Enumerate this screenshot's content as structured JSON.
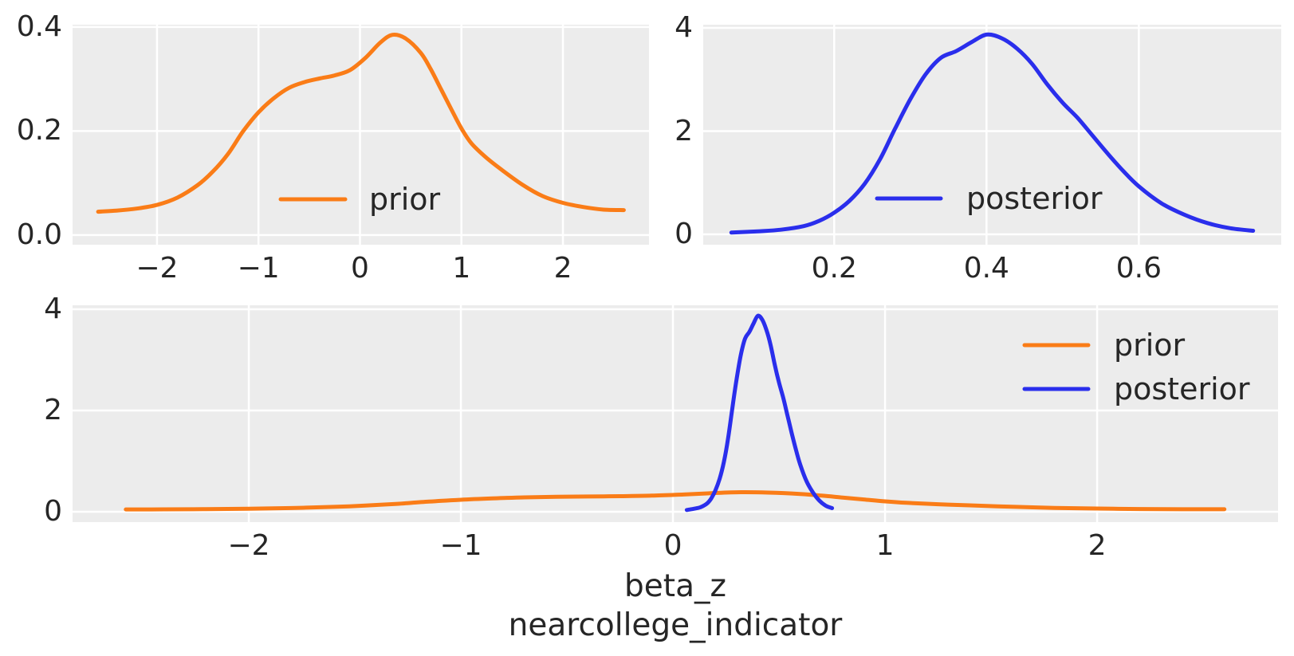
{
  "figure": {
    "background": "#ffffff",
    "axes_background": "#ececec",
    "grid_color": "#ffffff",
    "text_color": "#262626",
    "xlabel_lines": [
      "beta_z",
      "nearcollege_indicator"
    ]
  },
  "chart_data": [
    {
      "id": "prior-marginal",
      "type": "line",
      "kind": "kde-density",
      "title": "",
      "xlabel": "",
      "ylabel": "",
      "grid": true,
      "xlim": [
        -2.832,
        2.848
      ],
      "ylim": [
        -0.0185,
        0.4045
      ],
      "xticks": {
        "values": [
          -2,
          -1,
          0,
          1,
          2
        ],
        "labels": [
          "−2",
          "−1",
          "0",
          "1",
          "2"
        ]
      },
      "yticks": {
        "values": [
          0,
          0.2,
          0.4
        ],
        "labels": [
          "0.0",
          "0.2",
          "0.4"
        ]
      },
      "legend": {
        "location": "lower center",
        "entries": [
          {
            "label": "prior",
            "color": "#fa7c17"
          }
        ]
      },
      "series": [
        {
          "name": "prior",
          "color": "#fa7c17",
          "points": [
            [
              -2.58,
              0.045
            ],
            [
              -2.4,
              0.047
            ],
            [
              -2.2,
              0.051
            ],
            [
              -2.0,
              0.058
            ],
            [
              -1.8,
              0.072
            ],
            [
              -1.6,
              0.096
            ],
            [
              -1.45,
              0.122
            ],
            [
              -1.3,
              0.156
            ],
            [
              -1.15,
              0.2
            ],
            [
              -1.0,
              0.236
            ],
            [
              -0.85,
              0.263
            ],
            [
              -0.7,
              0.283
            ],
            [
              -0.55,
              0.294
            ],
            [
              -0.4,
              0.301
            ],
            [
              -0.25,
              0.307
            ],
            [
              -0.1,
              0.317
            ],
            [
              0.05,
              0.34
            ],
            [
              0.2,
              0.37
            ],
            [
              0.32,
              0.385
            ],
            [
              0.45,
              0.378
            ],
            [
              0.6,
              0.35
            ],
            [
              0.7,
              0.318
            ],
            [
              0.8,
              0.28
            ],
            [
              0.9,
              0.242
            ],
            [
              1.0,
              0.205
            ],
            [
              1.1,
              0.176
            ],
            [
              1.25,
              0.148
            ],
            [
              1.4,
              0.125
            ],
            [
              1.6,
              0.097
            ],
            [
              1.8,
              0.075
            ],
            [
              2.0,
              0.062
            ],
            [
              2.2,
              0.054
            ],
            [
              2.4,
              0.049
            ],
            [
              2.6,
              0.048
            ]
          ]
        }
      ]
    },
    {
      "id": "posterior-marginal",
      "type": "line",
      "kind": "kde-density",
      "title": "",
      "xlabel": "",
      "ylabel": "",
      "grid": true,
      "xlim": [
        0.028,
        0.787
      ],
      "ylim": [
        -0.2,
        4.062
      ],
      "xticks": {
        "values": [
          0.2,
          0.4,
          0.6
        ],
        "labels": [
          "0.2",
          "0.4",
          "0.6"
        ]
      },
      "yticks": {
        "values": [
          0,
          2,
          4
        ],
        "labels": [
          "0",
          "2",
          "4"
        ]
      },
      "legend": {
        "location": "lower center",
        "entries": [
          {
            "label": "posterior",
            "color": "#2a2eec"
          }
        ]
      },
      "series": [
        {
          "name": "posterior",
          "color": "#2a2eec",
          "points": [
            [
              0.065,
              0.035
            ],
            [
              0.1,
              0.06
            ],
            [
              0.13,
              0.09
            ],
            [
              0.16,
              0.16
            ],
            [
              0.18,
              0.26
            ],
            [
              0.2,
              0.42
            ],
            [
              0.22,
              0.65
            ],
            [
              0.24,
              0.98
            ],
            [
              0.26,
              1.45
            ],
            [
              0.28,
              2.05
            ],
            [
              0.3,
              2.62
            ],
            [
              0.32,
              3.1
            ],
            [
              0.34,
              3.42
            ],
            [
              0.36,
              3.55
            ],
            [
              0.38,
              3.72
            ],
            [
              0.4,
              3.87
            ],
            [
              0.42,
              3.8
            ],
            [
              0.44,
              3.6
            ],
            [
              0.46,
              3.3
            ],
            [
              0.48,
              2.9
            ],
            [
              0.5,
              2.55
            ],
            [
              0.52,
              2.25
            ],
            [
              0.54,
              1.9
            ],
            [
              0.56,
              1.55
            ],
            [
              0.58,
              1.22
            ],
            [
              0.6,
              0.93
            ],
            [
              0.63,
              0.6
            ],
            [
              0.66,
              0.38
            ],
            [
              0.69,
              0.22
            ],
            [
              0.72,
              0.12
            ],
            [
              0.75,
              0.07
            ]
          ]
        }
      ]
    },
    {
      "id": "prior-vs-posterior",
      "type": "line",
      "kind": "kde-density",
      "title": "",
      "xlabel": "beta_z\nnearcollege_indicator",
      "ylabel": "",
      "grid": true,
      "xlim": [
        -2.831,
        2.853
      ],
      "ylim": [
        -0.205,
        4.078
      ],
      "xticks": {
        "values": [
          -2,
          -1,
          0,
          1,
          2
        ],
        "labels": [
          "−2",
          "−1",
          "0",
          "1",
          "2"
        ]
      },
      "yticks": {
        "values": [
          0,
          2,
          4
        ],
        "labels": [
          "0",
          "2",
          "4"
        ]
      },
      "legend": {
        "location": "upper right",
        "entries": [
          {
            "label": "prior",
            "color": "#fa7c17"
          },
          {
            "label": "posterior",
            "color": "#2a2eec"
          }
        ]
      },
      "series": [
        {
          "name": "prior",
          "color": "#fa7c17",
          "points": [
            [
              -2.58,
              0.045
            ],
            [
              -2.4,
              0.047
            ],
            [
              -2.2,
              0.051
            ],
            [
              -2.0,
              0.058
            ],
            [
              -1.8,
              0.072
            ],
            [
              -1.6,
              0.096
            ],
            [
              -1.45,
              0.122
            ],
            [
              -1.3,
              0.156
            ],
            [
              -1.15,
              0.2
            ],
            [
              -1.0,
              0.236
            ],
            [
              -0.85,
              0.263
            ],
            [
              -0.7,
              0.283
            ],
            [
              -0.55,
              0.294
            ],
            [
              -0.4,
              0.301
            ],
            [
              -0.25,
              0.307
            ],
            [
              -0.1,
              0.317
            ],
            [
              0.05,
              0.34
            ],
            [
              0.2,
              0.37
            ],
            [
              0.32,
              0.385
            ],
            [
              0.45,
              0.378
            ],
            [
              0.6,
              0.35
            ],
            [
              0.7,
              0.318
            ],
            [
              0.8,
              0.28
            ],
            [
              0.9,
              0.242
            ],
            [
              1.0,
              0.205
            ],
            [
              1.1,
              0.176
            ],
            [
              1.25,
              0.148
            ],
            [
              1.4,
              0.125
            ],
            [
              1.6,
              0.097
            ],
            [
              1.8,
              0.075
            ],
            [
              2.0,
              0.062
            ],
            [
              2.2,
              0.054
            ],
            [
              2.4,
              0.049
            ],
            [
              2.6,
              0.048
            ]
          ]
        },
        {
          "name": "posterior",
          "color": "#2a2eec",
          "points": [
            [
              0.065,
              0.035
            ],
            [
              0.1,
              0.06
            ],
            [
              0.13,
              0.09
            ],
            [
              0.16,
              0.16
            ],
            [
              0.18,
              0.26
            ],
            [
              0.2,
              0.42
            ],
            [
              0.22,
              0.65
            ],
            [
              0.24,
              0.98
            ],
            [
              0.26,
              1.45
            ],
            [
              0.28,
              2.05
            ],
            [
              0.3,
              2.62
            ],
            [
              0.32,
              3.1
            ],
            [
              0.34,
              3.42
            ],
            [
              0.36,
              3.55
            ],
            [
              0.38,
              3.72
            ],
            [
              0.4,
              3.87
            ],
            [
              0.42,
              3.8
            ],
            [
              0.44,
              3.6
            ],
            [
              0.46,
              3.3
            ],
            [
              0.48,
              2.9
            ],
            [
              0.5,
              2.55
            ],
            [
              0.52,
              2.25
            ],
            [
              0.54,
              1.9
            ],
            [
              0.56,
              1.55
            ],
            [
              0.58,
              1.22
            ],
            [
              0.6,
              0.93
            ],
            [
              0.63,
              0.6
            ],
            [
              0.66,
              0.38
            ],
            [
              0.69,
              0.22
            ],
            [
              0.72,
              0.12
            ],
            [
              0.75,
              0.07
            ]
          ]
        }
      ]
    }
  ]
}
